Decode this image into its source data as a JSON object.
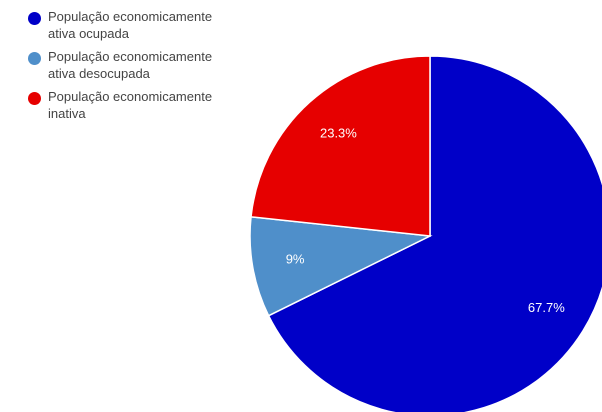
{
  "chart_data": {
    "type": "pie",
    "title": "",
    "series": [
      {
        "name": "População economicamente ativa ocupada",
        "value": 67.7,
        "label": "67.7%",
        "color": "#0000c8"
      },
      {
        "name": "População economicamente ativa desocupada",
        "value": 9,
        "label": "9%",
        "color": "#4f8fca"
      },
      {
        "name": "População economicamente inativa",
        "value": 23.3,
        "label": "23.3%",
        "color": "#e60000"
      }
    ],
    "legend_position": "top-left",
    "start_angle": "12 o'clock",
    "direction": "clockwise"
  }
}
